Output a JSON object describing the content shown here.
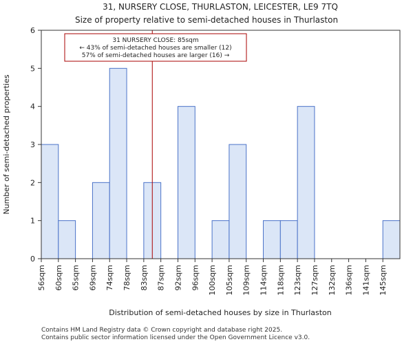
{
  "chart_data": {
    "type": "bar",
    "title": "31, NURSERY CLOSE, THURLASTON, LEICESTER, LE9 7TQ",
    "subtitle": "Size of property relative to semi-detached houses in Thurlaston",
    "xlabel": "Distribution of semi-detached houses by size in Thurlaston",
    "ylabel": "Number of semi-detached properties",
    "categories": [
      "56sqm",
      "60sqm",
      "65sqm",
      "69sqm",
      "74sqm",
      "78sqm",
      "83sqm",
      "87sqm",
      "92sqm",
      "96sqm",
      "100sqm",
      "105sqm",
      "109sqm",
      "114sqm",
      "118sqm",
      "123sqm",
      "127sqm",
      "132sqm",
      "136sqm",
      "141sqm",
      "145sqm"
    ],
    "values": [
      3,
      1,
      0,
      2,
      5,
      0,
      2,
      0,
      4,
      0,
      1,
      3,
      0,
      1,
      1,
      4,
      0,
      0,
      0,
      0,
      1
    ],
    "ylim": [
      0,
      6
    ],
    "yticks": [
      0,
      1,
      2,
      3,
      4,
      5,
      6
    ],
    "grid": false,
    "marker": {
      "x": 85,
      "label_lines": [
        "31 NURSERY CLOSE: 85sqm",
        "← 43% of semi-detached houses are smaller (12)",
        "57% of semi-detached houses are larger (16) →"
      ],
      "color": "#aa0000"
    },
    "bar_color": "#dbe6f7",
    "bar_edge_color": "#4a72c8"
  },
  "footer": {
    "line1": "Contains HM Land Registry data © Crown copyright and database right 2025.",
    "line2": "Contains public sector information licensed under the Open Government Licence v3.0."
  }
}
